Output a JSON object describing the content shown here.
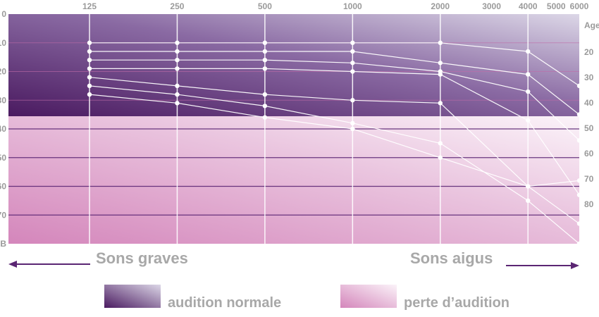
{
  "chart_data": {
    "type": "line",
    "x_scale": "log",
    "x": [
      125,
      250,
      500,
      1000,
      2000,
      4000,
      6000
    ],
    "x_tick_labels": [
      "125",
      "250",
      "500",
      "1000",
      "2000",
      "3000",
      "4000",
      "5000",
      "6000"
    ],
    "x_tick_values": [
      125,
      250,
      500,
      1000,
      2000,
      3000,
      4000,
      5000,
      6000
    ],
    "y_tick_labels": [
      "0",
      "10",
      "20",
      "30",
      "40",
      "50",
      "60",
      "70",
      "dB"
    ],
    "y_tick_values": [
      0,
      10,
      20,
      30,
      40,
      50,
      60,
      70,
      80
    ],
    "ylim": [
      0,
      80
    ],
    "age_axis_title": "Age",
    "age_tick_labels": [
      "20",
      "30",
      "40",
      "50",
      "60",
      "70",
      "80"
    ],
    "age_tick_values": [
      20,
      30,
      40,
      50,
      60,
      70,
      80
    ],
    "normal_hearing_limit_db": 40,
    "hearing_bands": [
      {
        "label": "audition normale",
        "range_db": [
          0,
          40
        ]
      },
      {
        "label": "perte d'audition",
        "range_db": [
          40,
          80
        ]
      }
    ],
    "series": [
      {
        "values": [
          10,
          10,
          10,
          10,
          10,
          13,
          25
        ]
      },
      {
        "values": [
          13,
          13,
          13,
          13,
          17,
          21,
          35
        ]
      },
      {
        "values": [
          16,
          16,
          16,
          17,
          20,
          27,
          44
        ]
      },
      {
        "values": [
          19,
          19,
          19,
          20,
          21,
          37,
          63
        ]
      },
      {
        "values": [
          22,
          25,
          28,
          30,
          31,
          60,
          73
        ]
      },
      {
        "values": [
          25,
          28,
          32,
          38,
          45,
          65,
          80
        ]
      },
      {
        "values": [
          28,
          31,
          36,
          40,
          50,
          60,
          58
        ]
      }
    ]
  },
  "annotations": {
    "low_sounds": "Sons graves",
    "high_sounds": "Sons aigus"
  },
  "legend": [
    {
      "label": "audition normale"
    },
    {
      "label": "perte d’audition"
    }
  ],
  "colors": {
    "normal_dark": "#4a1a60",
    "normal_light": "#dcd7e7",
    "loss_dark": "#d486bb",
    "loss_light": "#fbf3f9",
    "arrow": "#5b2673",
    "label_gray": "#a8a8a8"
  }
}
